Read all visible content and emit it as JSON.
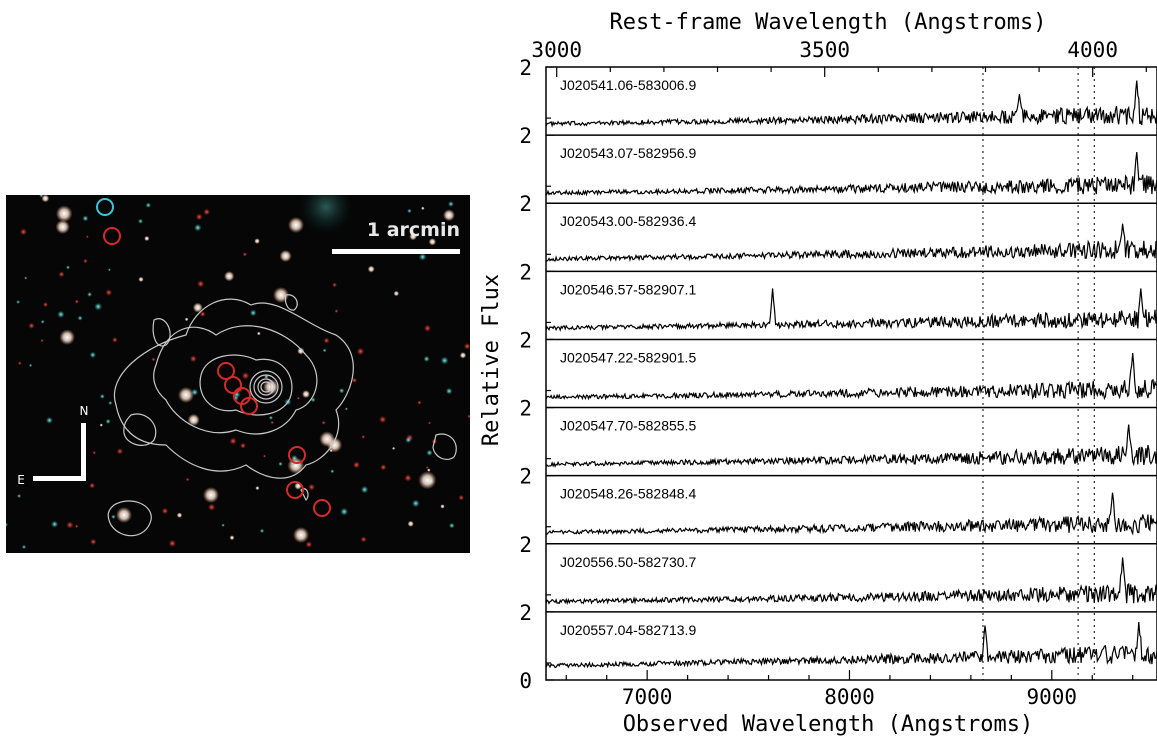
{
  "image_panel": {
    "scale_label": "1 arcmin",
    "compass_north": "N",
    "compass_east": "E",
    "colors": {
      "sky": "#050605",
      "contour": "#c8c8c8",
      "marker_red": "#d52a2a",
      "marker_cyan": "#39c6d8"
    }
  },
  "spectra_panel": {
    "top_axis_title": "Rest-frame Wavelength (Angstroms)",
    "bottom_axis_title": "Observed Wavelength (Angstroms)",
    "y_axis_title": "Relative Flux",
    "top_ticks": [
      "3000",
      "3500",
      "4000"
    ],
    "bottom_ticks": [
      "7000",
      "8000",
      "9000"
    ],
    "left_tick_labels": [
      "2",
      "2",
      "2",
      "2",
      "2",
      "2",
      "2",
      "2",
      "2",
      "0"
    ]
  },
  "chart_data": {
    "type": "line",
    "title": "",
    "xlabel": "Observed Wavelength (Angstroms)",
    "x2label": "Rest-frame Wavelength (Angstroms)",
    "ylabel": "Relative Flux",
    "xlim": [
      6500,
      9520
    ],
    "x2lim": [
      2980,
      4120
    ],
    "x_ticks": [
      7000,
      8000,
      9000
    ],
    "x2_ticks": [
      3000,
      3500,
      4000
    ],
    "vertical_lines_observed": [
      8660,
      9130,
      9210
    ],
    "panel_ylim": [
      0,
      2
    ],
    "series": [
      {
        "name": "J020541.06-583006.9",
        "level": 0.55,
        "spikes": [
          [
            8840,
            1.2
          ],
          [
            9420,
            1.6
          ]
        ]
      },
      {
        "name": "J020543.07-582956.9",
        "level": 0.5,
        "spikes": [
          [
            9420,
            1.5
          ]
        ]
      },
      {
        "name": "J020543.00-582936.4",
        "level": 0.6,
        "spikes": [
          [
            9350,
            1.4
          ]
        ]
      },
      {
        "name": "J020546.57-582907.1",
        "level": 0.55,
        "spikes": [
          [
            7620,
            1.5
          ],
          [
            9440,
            1.5
          ]
        ]
      },
      {
        "name": "J020547.22-582901.5",
        "level": 0.5,
        "spikes": [
          [
            9400,
            1.6
          ]
        ]
      },
      {
        "name": "J020547.70-582855.5",
        "level": 0.55,
        "spikes": [
          [
            9380,
            1.5
          ]
        ]
      },
      {
        "name": "J020548.26-582848.4",
        "level": 0.55,
        "spikes": [
          [
            9300,
            1.5
          ]
        ]
      },
      {
        "name": "J020556.50-582730.7",
        "level": 0.5,
        "spikes": [
          [
            9350,
            1.6
          ]
        ]
      },
      {
        "name": "J020557.04-582713.9",
        "level": 0.7,
        "spikes": [
          [
            8670,
            1.6
          ],
          [
            9430,
            1.7
          ]
        ]
      }
    ]
  }
}
